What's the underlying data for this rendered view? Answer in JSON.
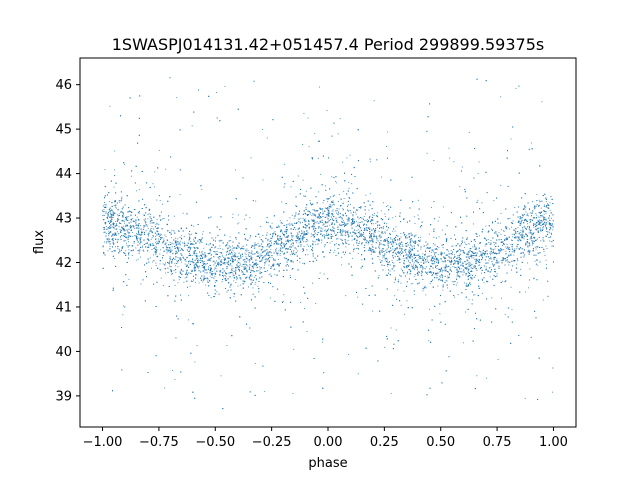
{
  "chart_data": {
    "type": "scatter",
    "title": "1SWASPJ014131.42+051457.4 Period 299899.59375s",
    "xlabel": "phase",
    "ylabel": "flux",
    "xlim": [
      -1.1,
      1.1
    ],
    "ylim": [
      38.3,
      46.6
    ],
    "xticks": [
      -1.0,
      -0.75,
      -0.5,
      -0.25,
      0.0,
      0.25,
      0.5,
      0.75,
      1.0
    ],
    "xtick_labels": [
      "−1.00",
      "−0.75",
      "−0.50",
      "−0.25",
      "0.00",
      "0.25",
      "0.50",
      "0.75",
      "1.00"
    ],
    "yticks": [
      39,
      40,
      41,
      42,
      43,
      44,
      45,
      46
    ],
    "ytick_labels": [
      "39",
      "40",
      "41",
      "42",
      "43",
      "44",
      "45",
      "46"
    ],
    "grid": false,
    "legend": "none",
    "marker_color": "#1f77b4",
    "series": [
      {
        "x": [
          -1.0,
          -0.95,
          -0.9,
          -0.85,
          -0.8,
          -0.75,
          -0.7,
          -0.65,
          -0.6,
          -0.55,
          -0.5,
          -0.45,
          -0.4,
          -0.35,
          -0.3,
          -0.25,
          -0.2,
          -0.15,
          -0.1,
          -0.05,
          0.0,
          0.05,
          0.1,
          0.15,
          0.2,
          0.25,
          0.3,
          0.35,
          0.4,
          0.45,
          0.5,
          0.55,
          0.6,
          0.65,
          0.7,
          0.75,
          0.8,
          0.85,
          0.9,
          0.95,
          1.0
        ],
        "y": [
          42.9,
          42.9,
          42.8,
          42.7,
          42.6,
          42.5,
          42.3,
          42.2,
          42.1,
          42.0,
          41.9,
          42.0,
          42.0,
          42.0,
          42.1,
          42.3,
          42.4,
          42.6,
          42.7,
          42.8,
          42.9,
          42.9,
          42.8,
          42.7,
          42.6,
          42.5,
          42.3,
          42.2,
          42.1,
          42.0,
          41.9,
          42.0,
          42.0,
          42.0,
          42.1,
          42.3,
          42.4,
          42.6,
          42.7,
          42.8,
          42.9
        ]
      }
    ]
  }
}
